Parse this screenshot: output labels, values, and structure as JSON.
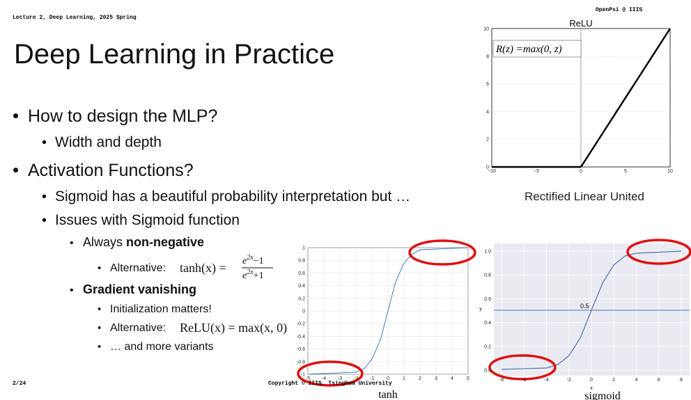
{
  "header": {
    "course": "Lecture 2, Deep Learning, 2025 Spring",
    "brand": "OpenPsi @ IIIS"
  },
  "title": "Deep Learning in Practice",
  "outline": {
    "q1": "How to design the MLP?",
    "q1_sub": "Width and depth",
    "q2": "Activation Functions?",
    "sigmoid_note": "Sigmoid has a beautiful probability interpretation but …",
    "issues": "Issues with Sigmoid function",
    "issue1": {
      "lead": "Always",
      "bold": "non-negative"
    },
    "issue1_alt": {
      "label": "Alternative:",
      "lhs": "tanh(x) =",
      "num_base": "e",
      "num_exp": "2x",
      "num_tail": "−1",
      "den_base": "e",
      "den_exp": "2x",
      "den_tail": "+1"
    },
    "issue2": "Gradient vanishing",
    "issue2_items": [
      "Initialization matters!",
      {
        "label": "Alternative:",
        "math": "ReLU(x) = max(x, 0)"
      },
      "… and more variants"
    ]
  },
  "footer": {
    "page": "2/24",
    "copyright": "Copyright © IIIS, Tsinghua University"
  },
  "figures": {
    "relu": {
      "title": "ReLU",
      "formula": "R(z) =max(0,  z)",
      "caption": "Rectified Linear United",
      "yticks": [
        "0",
        "2",
        "4",
        "6",
        "8",
        "10"
      ],
      "xticks": [
        "−10",
        "−5",
        "0",
        "5",
        "10"
      ]
    },
    "tanh": {
      "caption": "tanh",
      "yticks": [
        "1",
        "0.8",
        "0.6",
        "0.4",
        "0.2",
        "0",
        "-0.2",
        "-0.4",
        "-0.6",
        "-0.8",
        "-1"
      ],
      "xticks": [
        "-5",
        "-4",
        "-3",
        "-2",
        "-1",
        "0",
        "1",
        "2",
        "3",
        "4",
        "5"
      ]
    },
    "sigmoid": {
      "caption": "sigmoid",
      "annotation": "0.5",
      "xlabel": "x",
      "ylabel": "y",
      "yticks": [
        "1.0",
        "0.8",
        "0.6",
        "0.4",
        "0.2",
        "0.0"
      ],
      "xticks": [
        "-8",
        "-6",
        "-4",
        "-2",
        "0",
        "2",
        "4",
        "6",
        "8"
      ]
    }
  }
}
